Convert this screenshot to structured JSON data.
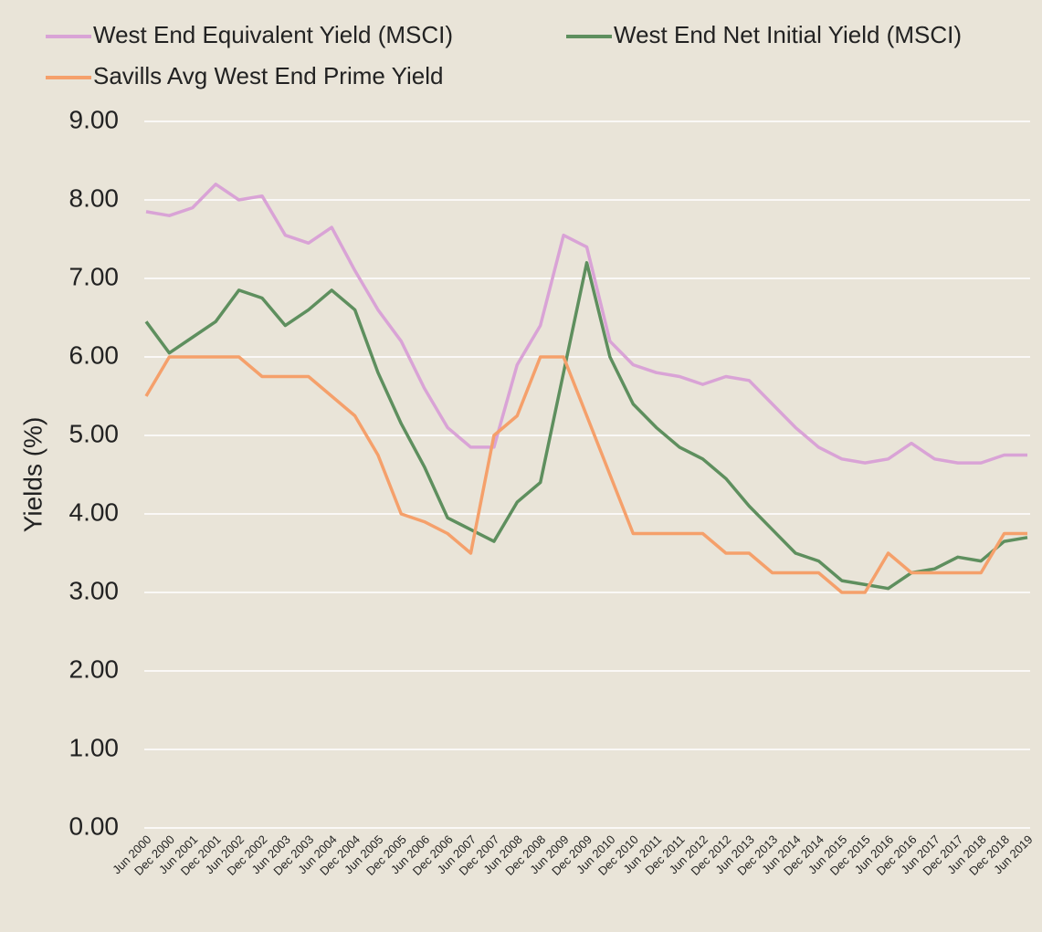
{
  "chart_data": {
    "type": "line",
    "y_label": "Yields (%)",
    "categories": [
      "Jun 2000",
      "Dec 2000",
      "Jun 2001",
      "Dec 2001",
      "Jun 2002",
      "Dec 2002",
      "Jun 2003",
      "Dec 2003",
      "Jun 2004",
      "Dec 2004",
      "Jun 2005",
      "Dec 2005",
      "Jun 2006",
      "Dec 2006",
      "Jun 2007",
      "Dec 2007",
      "Jun 2008",
      "Dec 2008",
      "Jun 2009",
      "Dec 2009",
      "Jun 2010",
      "Dec 2010",
      "Jun 2011",
      "Dec 2011",
      "Jun 2012",
      "Dec 2012",
      "Jun 2013",
      "Dec 2013",
      "Jun 2014",
      "Dec 2014",
      "Jun 2015",
      "Dec 2015",
      "Jun 2016",
      "Dec 2016",
      "Jun 2017",
      "Dec 2017",
      "Jun 2018",
      "Dec 2018",
      "Jun 2019"
    ],
    "series": [
      {
        "name": "West End Equivalent Yield (MSCI)",
        "color": "#d9a3d6",
        "values": [
          7.85,
          7.8,
          7.9,
          8.2,
          8.0,
          8.05,
          7.55,
          7.45,
          7.65,
          7.1,
          6.6,
          6.2,
          5.6,
          5.1,
          4.85,
          4.85,
          5.9,
          6.4,
          7.55,
          7.4,
          6.2,
          5.9,
          5.8,
          5.75,
          5.65,
          5.75,
          5.7,
          5.4,
          5.1,
          4.85,
          4.7,
          4.65,
          4.7,
          4.9,
          4.7,
          4.65,
          4.65,
          4.75,
          4.75
        ]
      },
      {
        "name": "West End Net Initial Yield (MSCI)",
        "color": "#5e8f5e",
        "values": [
          6.45,
          6.05,
          6.25,
          6.45,
          6.85,
          6.75,
          6.4,
          6.6,
          6.85,
          6.6,
          5.8,
          5.15,
          4.6,
          3.95,
          3.8,
          3.65,
          4.15,
          4.4,
          5.8,
          7.2,
          6.0,
          5.4,
          5.1,
          4.85,
          4.7,
          4.45,
          4.1,
          3.8,
          3.5,
          3.4,
          3.15,
          3.1,
          3.05,
          3.25,
          3.3,
          3.45,
          3.4,
          3.65,
          3.7
        ]
      },
      {
        "name": "Savills Avg West End Prime Yield",
        "color": "#f5a06b",
        "values": [
          5.5,
          6.0,
          6.0,
          6.0,
          6.0,
          5.75,
          5.75,
          5.75,
          5.5,
          5.25,
          4.75,
          4.0,
          3.9,
          3.75,
          3.5,
          5.0,
          5.25,
          6.0,
          6.0,
          5.25,
          4.5,
          3.75,
          3.75,
          3.75,
          3.75,
          3.5,
          3.5,
          3.25,
          3.25,
          3.25,
          3.0,
          3.0,
          3.5,
          3.25,
          3.25,
          3.25,
          3.25,
          3.75,
          3.75
        ]
      }
    ],
    "ylim": [
      0,
      9
    ],
    "yticks": [
      {
        "value": 0,
        "label": "0.00"
      },
      {
        "value": 1,
        "label": "1.00"
      },
      {
        "value": 2,
        "label": "2.00"
      },
      {
        "value": 3,
        "label": "3.00"
      },
      {
        "value": 4,
        "label": "4.00"
      },
      {
        "value": 5,
        "label": "5.00"
      },
      {
        "value": 6,
        "label": "6.00"
      },
      {
        "value": 7,
        "label": "7.00"
      },
      {
        "value": 8,
        "label": "8.00"
      },
      {
        "value": 9,
        "label": "9.00"
      }
    ],
    "grid": true
  }
}
